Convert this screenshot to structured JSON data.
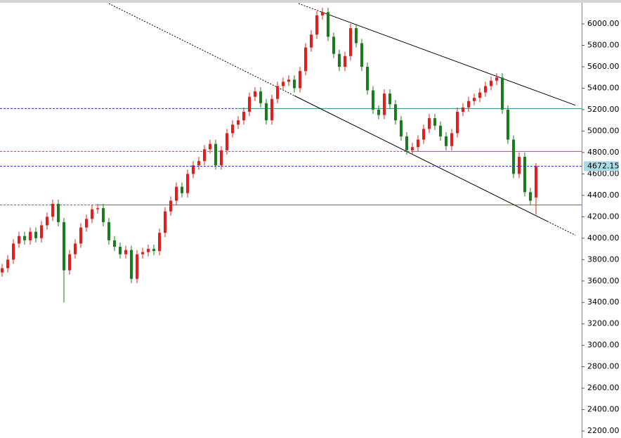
{
  "chart_data": {
    "type": "candlestick",
    "up_color": "#e0201e",
    "down_color": "#1e7a1e",
    "open": [
      3680,
      3720,
      3800,
      3950,
      4020,
      3980,
      4060,
      4000,
      4120,
      4200,
      4320,
      4150,
      3700,
      3850,
      3950,
      4100,
      4180,
      4270,
      4280,
      4150,
      3980,
      3920,
      3850,
      3890,
      3620,
      3850,
      3870,
      3900,
      3880,
      4050,
      4250,
      4350,
      4480,
      4420,
      4600,
      4680,
      4720,
      4830,
      4880,
      4680,
      4820,
      4980,
      5060,
      5100,
      5180,
      5320,
      5370,
      5260,
      5100,
      5300,
      5420,
      5460,
      5480,
      5400,
      5560,
      5780,
      5900,
      6080,
      6110,
      5880,
      5720,
      5600,
      5700,
      5960,
      5820,
      5600,
      5380,
      5200,
      5150,
      5350,
      5250,
      5100,
      4950,
      4820,
      4850,
      4920,
      5020,
      5120,
      5050,
      4950,
      4860,
      4980,
      5180,
      5220,
      5280,
      5310,
      5360,
      5420,
      5470,
      5500,
      5200,
      4920,
      4600,
      4760,
      4430,
      4380
    ],
    "high": [
      3760,
      3840,
      3990,
      4060,
      4060,
      4100,
      4100,
      4160,
      4240,
      4360,
      4360,
      4190,
      3890,
      3990,
      4140,
      4220,
      4310,
      4320,
      4320,
      4190,
      4020,
      3960,
      3930,
      3930,
      3890,
      3910,
      3940,
      3940,
      4090,
      4290,
      4390,
      4520,
      4520,
      4640,
      4720,
      4760,
      4870,
      4920,
      4920,
      4860,
      5020,
      5100,
      5140,
      5220,
      5360,
      5410,
      5410,
      5300,
      5340,
      5460,
      5500,
      5520,
      5520,
      5600,
      5820,
      5940,
      6120,
      6150,
      6150,
      5920,
      5760,
      5740,
      6000,
      6000,
      5860,
      5640,
      5420,
      5240,
      5390,
      5390,
      5290,
      5140,
      4990,
      4890,
      4960,
      5060,
      5160,
      5160,
      5090,
      4990,
      5020,
      5220,
      5260,
      5320,
      5350,
      5400,
      5460,
      5510,
      5540,
      5540,
      5240,
      4960,
      4800,
      4800,
      4470,
      4700
    ],
    "low": [
      3640,
      3680,
      3760,
      3910,
      3940,
      3940,
      3960,
      3960,
      4080,
      4160,
      4110,
      3400,
      3660,
      3810,
      3910,
      4060,
      4140,
      4230,
      4110,
      3940,
      3880,
      3810,
      3810,
      3580,
      3580,
      3810,
      3830,
      3840,
      3840,
      4010,
      4210,
      4310,
      4380,
      4380,
      4560,
      4640,
      4680,
      4790,
      4640,
      4640,
      4780,
      4940,
      5020,
      5060,
      5140,
      5280,
      5220,
      5060,
      5060,
      5260,
      5380,
      5420,
      5360,
      5360,
      5520,
      5740,
      5860,
      6040,
      5840,
      5680,
      5560,
      5560,
      5660,
      5780,
      5560,
      5340,
      5160,
      5110,
      5110,
      5210,
      5060,
      4910,
      4780,
      4780,
      4810,
      4880,
      4980,
      5010,
      4910,
      4820,
      4820,
      4940,
      5140,
      5180,
      5240,
      5270,
      5320,
      5380,
      5430,
      5160,
      4880,
      4560,
      4560,
      4390,
      4310,
      4220
    ],
    "close": [
      3720,
      3800,
      3950,
      4020,
      3980,
      4060,
      4000,
      4120,
      4200,
      4320,
      4150,
      3700,
      3850,
      3950,
      4100,
      4180,
      4270,
      4280,
      4150,
      3980,
      3920,
      3850,
      3890,
      3620,
      3850,
      3870,
      3900,
      3880,
      4050,
      4250,
      4350,
      4480,
      4420,
      4600,
      4680,
      4720,
      4830,
      4880,
      4680,
      4820,
      4980,
      5060,
      5100,
      5180,
      5320,
      5370,
      5260,
      5100,
      5300,
      5420,
      5460,
      5480,
      5400,
      5560,
      5780,
      5900,
      6080,
      6110,
      5880,
      5720,
      5600,
      5700,
      5960,
      5820,
      5600,
      5380,
      5200,
      5150,
      5350,
      5250,
      5100,
      4950,
      4820,
      4850,
      4920,
      5020,
      5120,
      5050,
      4950,
      4860,
      4980,
      5180,
      5220,
      5280,
      5310,
      5360,
      5420,
      5470,
      5500,
      5200,
      4920,
      4600,
      4760,
      4430,
      4350,
      4672.15
    ],
    "ylim": [
      2135,
      6197
    ],
    "yticks": [
      {
        "value": 2200,
        "label": "2200.00"
      },
      {
        "value": 2400,
        "label": "2400.00"
      },
      {
        "value": 2600,
        "label": "2600.00"
      },
      {
        "value": 2800,
        "label": "2800.00"
      },
      {
        "value": 3000,
        "label": "3000.00"
      },
      {
        "value": 3200,
        "label": "3200.00"
      },
      {
        "value": 3400,
        "label": "3400.00"
      },
      {
        "value": 3600,
        "label": "3600.00"
      },
      {
        "value": 3800,
        "label": "3800.00"
      },
      {
        "value": 4000,
        "label": "4000.00"
      },
      {
        "value": 4200,
        "label": "4200.00"
      },
      {
        "value": 4400,
        "label": "4400.00"
      },
      {
        "value": 4600,
        "label": "4600.00"
      },
      {
        "value": 4800,
        "label": "4800.00"
      },
      {
        "value": 5000,
        "label": "5000.00"
      },
      {
        "value": 5200,
        "label": "5200.00"
      },
      {
        "value": 5400,
        "label": "5400.00"
      },
      {
        "value": 5600,
        "label": "5600.00"
      },
      {
        "value": 5800,
        "label": "5800.00"
      },
      {
        "value": 6000,
        "label": "6000.00"
      }
    ],
    "levels": [
      {
        "value": 5210,
        "color": "#2a8a9c",
        "dash_color": "#1a3a8a",
        "from": 42
      },
      {
        "value": 4810,
        "color": "#e020e0",
        "dash_color": "#e020e0",
        "from": 73
      },
      {
        "value": 4310,
        "color": "#e020e0",
        "dash_color": "#e020e0",
        "from": 17
      }
    ],
    "last_line_color": "#1a2ad0",
    "last_label_color": "#a8dce6",
    "trendlines": [
      {
        "x": [
          19,
          52
        ],
        "y": [
          6190,
          5330
        ],
        "dashed": true
      },
      {
        "x": [
          52,
          97
        ],
        "y": [
          5330,
          4158
        ],
        "dashed": false
      },
      {
        "x": [
          97,
          102
        ],
        "y": [
          4158,
          4028
        ],
        "dashed": true
      },
      {
        "x": [
          52.75,
          56.5
        ],
        "y": [
          6190,
          6118
        ],
        "dashed": true
      },
      {
        "x": [
          56.5,
          102
        ],
        "y": [
          6118,
          5241
        ],
        "dashed": false
      }
    ]
  }
}
